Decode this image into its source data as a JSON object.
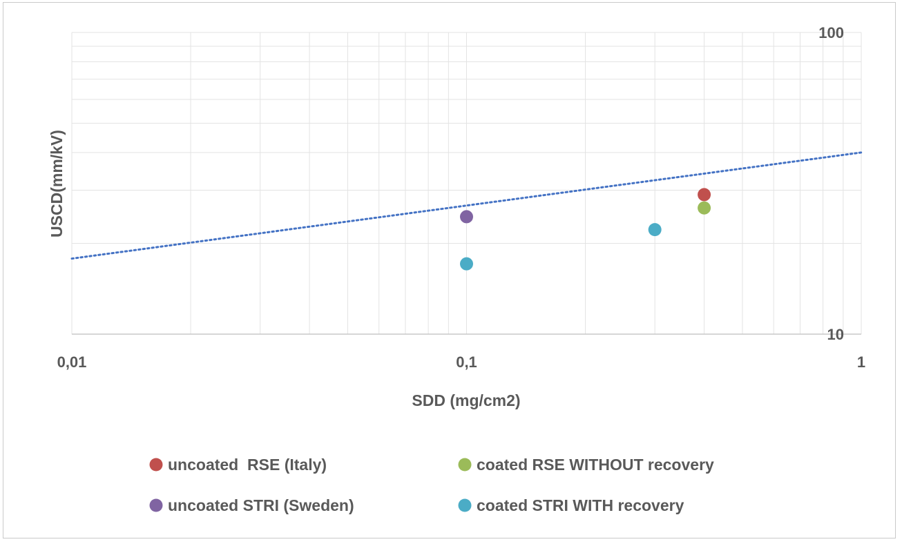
{
  "chart_data": {
    "type": "scatter",
    "title": "",
    "xlabel": "SDD (mg/cm2)",
    "ylabel": "USCD(mm/kV)",
    "xscale": "log",
    "yscale": "log",
    "xlim": [
      0.01,
      1
    ],
    "ylim": [
      10,
      100
    ],
    "x_ticks": [
      {
        "value": 0.01,
        "label": "0,01"
      },
      {
        "value": 0.1,
        "label": "0,1"
      },
      {
        "value": 1,
        "label": "1"
      }
    ],
    "y_ticks": [
      {
        "value": 10,
        "label": "10"
      },
      {
        "value": 100,
        "label": "100"
      }
    ],
    "grid": true,
    "legend_position": "bottom",
    "series": [
      {
        "name": "uncoated  RSE (Italy)",
        "color": "#c0504d",
        "points": [
          {
            "x": 0.4,
            "y": 29
          }
        ]
      },
      {
        "name": "coated RSE WITHOUT recovery",
        "color": "#9bbb59",
        "points": [
          {
            "x": 0.4,
            "y": 26.2
          }
        ]
      },
      {
        "name": "uncoated STRI (Sweden)",
        "color": "#8064a2",
        "points": [
          {
            "x": 0.1,
            "y": 24.5
          }
        ]
      },
      {
        "name": "coated STRI WITH recovery",
        "color": "#4bacc6",
        "points": [
          {
            "x": 0.1,
            "y": 17.1
          },
          {
            "x": 0.3,
            "y": 22.2
          }
        ]
      }
    ],
    "trendline": {
      "type": "power",
      "style": "dotted",
      "color": "#4472c4",
      "x": [
        0.01,
        1
      ],
      "y": [
        17.8,
        40
      ]
    }
  }
}
